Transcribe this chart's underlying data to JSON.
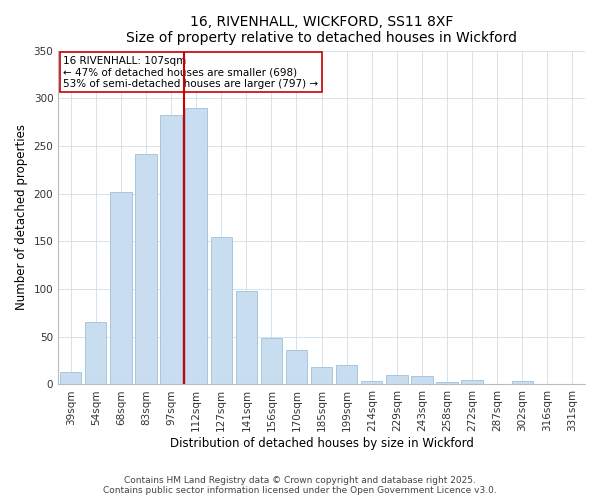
{
  "title": "16, RIVENHALL, WICKFORD, SS11 8XF",
  "subtitle": "Size of property relative to detached houses in Wickford",
  "xlabel": "Distribution of detached houses by size in Wickford",
  "ylabel": "Number of detached properties",
  "categories": [
    "39sqm",
    "54sqm",
    "68sqm",
    "83sqm",
    "97sqm",
    "112sqm",
    "127sqm",
    "141sqm",
    "156sqm",
    "170sqm",
    "185sqm",
    "199sqm",
    "214sqm",
    "229sqm",
    "243sqm",
    "258sqm",
    "272sqm",
    "287sqm",
    "302sqm",
    "316sqm",
    "331sqm"
  ],
  "values": [
    13,
    65,
    202,
    242,
    282,
    290,
    155,
    98,
    49,
    36,
    18,
    20,
    4,
    10,
    9,
    3,
    5,
    0,
    4,
    0,
    1
  ],
  "bar_color": "#c8ddf0",
  "bar_edge_color": "#a0c0dc",
  "vline_x": 4.5,
  "vline_color": "#cc0000",
  "annotation_title": "16 RIVENHALL: 107sqm",
  "annotation_line1": "← 47% of detached houses are smaller (698)",
  "annotation_line2": "53% of semi-detached houses are larger (797) →",
  "annotation_box_color": "#ffffff",
  "annotation_box_edge": "#cc0000",
  "ylim": [
    0,
    350
  ],
  "yticks": [
    0,
    50,
    100,
    150,
    200,
    250,
    300,
    350
  ],
  "footer1": "Contains HM Land Registry data © Crown copyright and database right 2025.",
  "footer2": "Contains public sector information licensed under the Open Government Licence v3.0.",
  "bg_color": "#ffffff",
  "plot_bg_color": "#ffffff",
  "title_fontsize": 10,
  "subtitle_fontsize": 9,
  "axis_label_fontsize": 8.5,
  "tick_fontsize": 7.5,
  "annotation_fontsize": 7.5,
  "footer_fontsize": 6.5
}
